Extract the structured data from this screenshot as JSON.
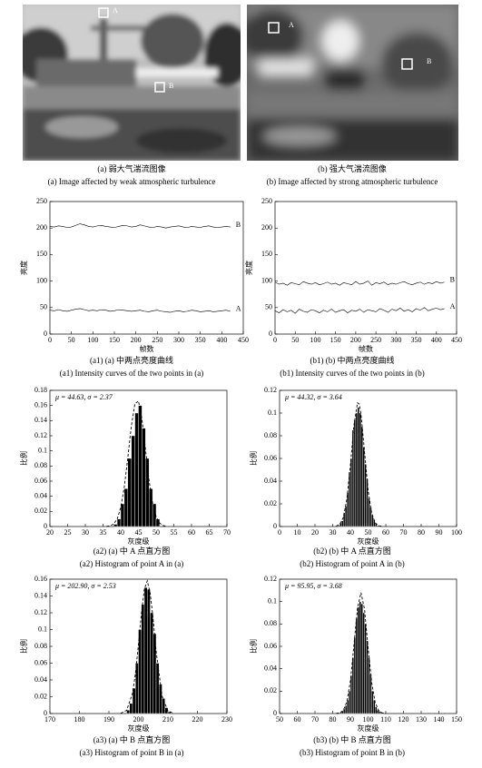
{
  "images": [
    {
      "caption": [
        "(a) 弱大气湍流图像",
        "(a) Image affected by weak atmospheric turbulence"
      ],
      "markers": [
        "A",
        "B"
      ]
    },
    {
      "caption": [
        "(b) 强大气湍流图像",
        "(b) Image affected by strong atmospheric turbulence"
      ],
      "markers": [
        "A",
        "B"
      ]
    }
  ],
  "chart_data": [
    {
      "type": "line",
      "xlabel": "帧数",
      "ylabel": "亮度",
      "x": [
        0,
        10,
        20,
        30,
        40,
        50,
        60,
        70,
        80,
        90,
        100,
        110,
        120,
        130,
        140,
        150,
        160,
        170,
        180,
        190,
        200,
        210,
        220,
        230,
        240,
        250,
        260,
        270,
        280,
        290,
        300,
        310,
        320,
        330,
        340,
        350,
        360,
        370,
        380,
        390,
        400,
        410,
        420
      ],
      "xlim": [
        0,
        450
      ],
      "xticks": [
        0,
        50,
        100,
        150,
        200,
        250,
        300,
        350,
        400,
        450
      ],
      "ylim": [
        0,
        250
      ],
      "yticks": [
        0,
        50,
        100,
        150,
        200,
        250
      ],
      "series": [
        {
          "name": "B",
          "color": "#000000",
          "values": [
            203,
            202,
            204,
            203,
            201,
            202,
            205,
            208,
            206,
            203,
            202,
            204,
            205,
            203,
            202,
            201,
            203,
            205,
            204,
            202,
            203,
            206,
            204,
            202,
            201,
            203,
            202,
            200,
            202,
            203,
            204,
            202,
            201,
            203,
            202,
            201,
            203,
            204,
            202,
            201,
            202,
            203,
            202
          ]
        },
        {
          "name": "A",
          "color": "#000000",
          "values": [
            45,
            44,
            46,
            44,
            43,
            45,
            47,
            48,
            46,
            44,
            45,
            44,
            46,
            45,
            43,
            44,
            46,
            45,
            44,
            43,
            44,
            45,
            43,
            42,
            44,
            45,
            43,
            42,
            41,
            43,
            44,
            42,
            43,
            45,
            44,
            42,
            43,
            44,
            42,
            43,
            44,
            45,
            43
          ]
        }
      ],
      "caption": [
        "(a1) (a) 中两点亮度曲线",
        "(a1) Intensity curves of the two points in (a)"
      ]
    },
    {
      "type": "line",
      "xlabel": "帧数",
      "ylabel": "亮度",
      "x": [
        0,
        10,
        20,
        30,
        40,
        50,
        60,
        70,
        80,
        90,
        100,
        110,
        120,
        130,
        140,
        150,
        160,
        170,
        180,
        190,
        200,
        210,
        220,
        230,
        240,
        250,
        260,
        270,
        280,
        290,
        300,
        310,
        320,
        330,
        340,
        350,
        360,
        370,
        380,
        390,
        400,
        410,
        420
      ],
      "xlim": [
        0,
        450
      ],
      "xticks": [
        0,
        50,
        100,
        150,
        200,
        250,
        300,
        350,
        400,
        450
      ],
      "ylim": [
        0,
        250
      ],
      "yticks": [
        0,
        50,
        100,
        150,
        200,
        250
      ],
      "series": [
        {
          "name": "B",
          "color": "#000000",
          "values": [
            98,
            94,
            96,
            92,
            97,
            95,
            93,
            99,
            96,
            94,
            97,
            93,
            95,
            98,
            94,
            96,
            92,
            97,
            95,
            93,
            99,
            94,
            96,
            100,
            92,
            97,
            95,
            98,
            93,
            96,
            94,
            97,
            99,
            95,
            93,
            96,
            98,
            94,
            97,
            95,
            99,
            96,
            98
          ]
        },
        {
          "name": "A",
          "color": "#000000",
          "values": [
            44,
            40,
            46,
            42,
            45,
            39,
            47,
            43,
            41,
            46,
            44,
            40,
            45,
            42,
            47,
            41,
            44,
            46,
            40,
            45,
            43,
            47,
            41,
            46,
            44,
            42,
            48,
            45,
            41,
            47,
            44,
            49,
            43,
            46,
            42,
            48,
            45,
            50,
            44,
            47,
            49,
            46,
            48
          ]
        }
      ],
      "caption": [
        "(b1) (b) 中两点亮度曲线",
        "(b1) Intensity curves of the two points in (b)"
      ]
    },
    {
      "type": "histogram",
      "xlabel": "灰度级",
      "ylabel": "比例",
      "annotation": "μ = 44.63, σ = 2.37",
      "color": "#000000",
      "bins": [
        38,
        39,
        40,
        41,
        42,
        43,
        44,
        45,
        46,
        47,
        48,
        49,
        50,
        51
      ],
      "values": [
        0.003,
        0.01,
        0.03,
        0.05,
        0.09,
        0.12,
        0.15,
        0.16,
        0.13,
        0.09,
        0.05,
        0.03,
        0.01
      ],
      "fit": {
        "x": [
          36,
          37,
          38,
          39,
          40,
          41,
          42,
          43,
          44,
          45,
          46,
          47,
          48,
          49,
          50,
          51,
          52,
          53
        ],
        "values": [
          0.0002,
          0.0009,
          0.0034,
          0.01,
          0.025,
          0.052,
          0.091,
          0.133,
          0.162,
          0.166,
          0.142,
          0.102,
          0.061,
          0.031,
          0.013,
          0.0045,
          0.0013,
          0.0003
        ]
      },
      "xlim": [
        20,
        70
      ],
      "xticks": [
        20,
        25,
        30,
        35,
        40,
        45,
        50,
        55,
        60,
        65,
        70
      ],
      "ylim": [
        0,
        0.18
      ],
      "yticks": [
        0,
        0.02,
        0.04,
        0.06,
        0.08,
        0.1,
        0.12,
        0.14,
        0.16,
        0.18
      ],
      "caption": [
        "(a2) (a) 中 A 点直方图",
        "(a2) Histogram of point A in (a)"
      ]
    },
    {
      "type": "histogram",
      "xlabel": "灰度级",
      "ylabel": "比例",
      "annotation": "μ = 44.32, σ = 3.64",
      "color": "#000000",
      "bins": [
        33,
        34,
        35,
        36,
        37,
        38,
        39,
        40,
        41,
        42,
        43,
        44,
        45,
        46,
        47,
        48,
        49,
        50,
        51,
        52,
        53,
        54,
        55,
        56,
        57
      ],
      "values": [
        0.001,
        0.003,
        0.005,
        0.012,
        0.018,
        0.03,
        0.048,
        0.06,
        0.085,
        0.094,
        0.1,
        0.105,
        0.1,
        0.088,
        0.07,
        0.055,
        0.042,
        0.025,
        0.017,
        0.01,
        0.006,
        0.003,
        0.001,
        0.001
      ],
      "fit": {
        "x": [
          32,
          34,
          36,
          38,
          40,
          42,
          44,
          45,
          46,
          48,
          50,
          52,
          54,
          56,
          58
        ],
        "values": [
          0.0004,
          0.002,
          0.008,
          0.024,
          0.054,
          0.089,
          0.109,
          0.108,
          0.099,
          0.066,
          0.032,
          0.012,
          0.0032,
          0.0006,
          0.0001
        ]
      },
      "xlim": [
        0,
        100
      ],
      "xticks": [
        0,
        10,
        20,
        30,
        40,
        50,
        60,
        70,
        80,
        90,
        100
      ],
      "ylim": [
        0,
        0.12
      ],
      "yticks": [
        0,
        0.02,
        0.04,
        0.06,
        0.08,
        0.1,
        0.12
      ],
      "caption": [
        "(b2) (b) 中 A 点直方图",
        "(b2) Histogram of point A in (b)"
      ]
    },
    {
      "type": "histogram",
      "xlabel": "灰度级",
      "ylabel": "比例",
      "annotation": "μ = 202.90, σ = 2.53",
      "color": "#000000",
      "bins": [
        196,
        197,
        198,
        199,
        200,
        201,
        202,
        203,
        204,
        205,
        206,
        207,
        208,
        209,
        210,
        211
      ],
      "values": [
        0.004,
        0.012,
        0.03,
        0.06,
        0.1,
        0.13,
        0.15,
        0.148,
        0.12,
        0.095,
        0.06,
        0.035,
        0.018,
        0.007,
        0.002
      ],
      "fit": {
        "x": [
          194,
          196,
          198,
          199,
          200,
          201,
          202,
          203,
          204,
          205,
          206,
          208,
          210,
          212
        ],
        "values": [
          0.0003,
          0.0038,
          0.024,
          0.048,
          0.082,
          0.119,
          0.148,
          0.158,
          0.143,
          0.112,
          0.074,
          0.021,
          0.003,
          0.0002
        ]
      },
      "xlim": [
        170,
        230
      ],
      "xticks": [
        170,
        180,
        190,
        200,
        210,
        220,
        230
      ],
      "ylim": [
        0,
        0.16
      ],
      "yticks": [
        0,
        0.02,
        0.04,
        0.06,
        0.08,
        0.1,
        0.12,
        0.14,
        0.16
      ],
      "caption": [
        "(a3) (a) 中 B 点直方图",
        "(a3) Histogram of point B in (a)"
      ]
    },
    {
      "type": "histogram",
      "xlabel": "灰度级",
      "ylabel": "比例",
      "annotation": "μ = 95.95, σ = 3.68",
      "color": "#000000",
      "bins": [
        84,
        85,
        86,
        87,
        88,
        89,
        90,
        91,
        92,
        93,
        94,
        95,
        96,
        97,
        98,
        99,
        100,
        101,
        102,
        103,
        104,
        105,
        106,
        107,
        108,
        109
      ],
      "values": [
        0.001,
        0.002,
        0.004,
        0.007,
        0.012,
        0.02,
        0.034,
        0.05,
        0.068,
        0.085,
        0.095,
        0.1,
        0.098,
        0.09,
        0.08,
        0.065,
        0.05,
        0.035,
        0.02,
        0.012,
        0.006,
        0.003,
        0.002,
        0.001,
        0.001
      ],
      "fit": {
        "x": [
          82,
          84,
          86,
          88,
          90,
          92,
          94,
          96,
          98,
          100,
          102,
          104,
          106,
          108,
          110
        ],
        "values": [
          0.0001,
          0.0006,
          0.0028,
          0.0105,
          0.029,
          0.061,
          0.094,
          0.108,
          0.093,
          0.059,
          0.028,
          0.0099,
          0.0026,
          0.0005,
          0.0001
        ]
      },
      "xlim": [
        50,
        150
      ],
      "xticks": [
        50,
        60,
        70,
        80,
        90,
        100,
        110,
        120,
        130,
        140,
        150
      ],
      "ylim": [
        0,
        0.12
      ],
      "yticks": [
        0,
        0.02,
        0.04,
        0.06,
        0.08,
        0.1,
        0.12
      ],
      "caption": [
        "(b3) (b) 中 B 点直方图",
        "(b3) Histogram of point B in (b)"
      ]
    }
  ]
}
